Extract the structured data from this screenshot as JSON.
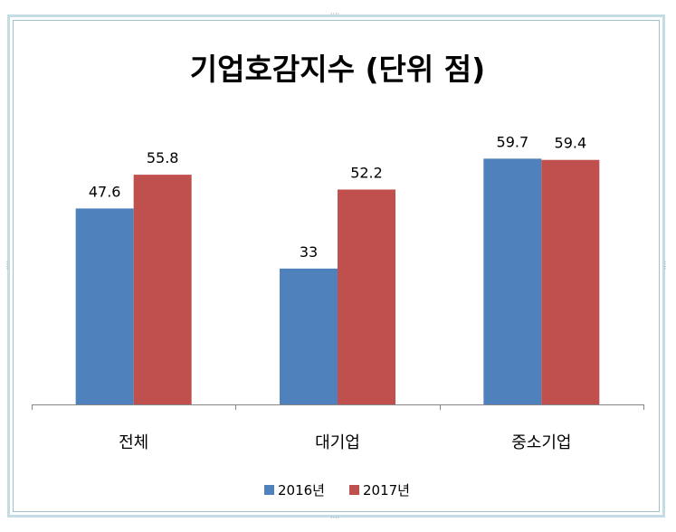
{
  "chart_data": {
    "type": "bar",
    "title": "기업호감지수 (단위 점)",
    "categories": [
      "전체",
      "대기업",
      "중소기업"
    ],
    "series": [
      {
        "name": "2016년",
        "values": [
          47.6,
          33,
          59.7
        ],
        "color": "#4f81bd"
      },
      {
        "name": "2017년",
        "values": [
          55.8,
          52.2,
          59.4
        ],
        "color": "#c0504d"
      }
    ],
    "value_labels": [
      [
        "47.6",
        "33",
        "59.7"
      ],
      [
        "55.8",
        "52.2",
        "59.4"
      ]
    ],
    "ylim": [
      0,
      66
    ],
    "grid": false,
    "legend": "bottom",
    "axis_color": "#868686"
  }
}
